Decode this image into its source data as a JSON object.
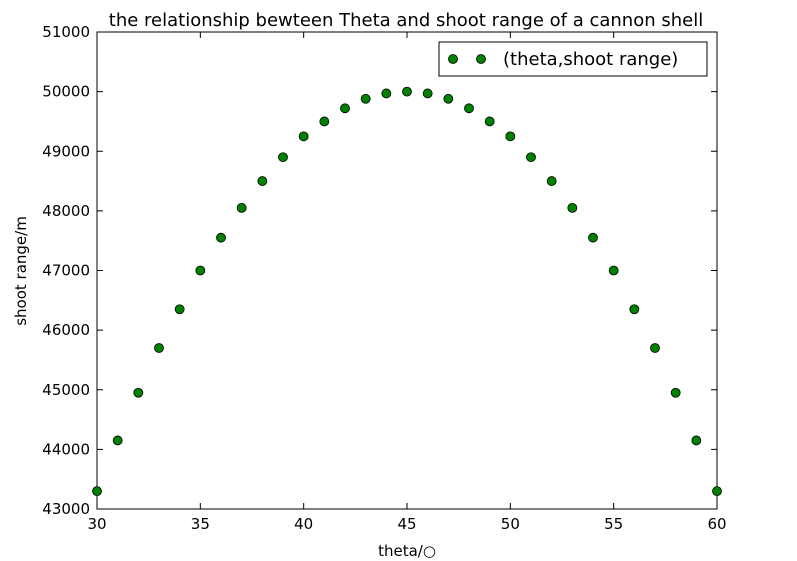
{
  "chart_data": {
    "type": "scatter",
    "title": "the relationship bewteen Theta and shoot range of a cannon shell",
    "xlabel": "theta/○",
    "ylabel": "shoot range/m",
    "xlim": [
      30,
      60
    ],
    "ylim": [
      43000,
      51000
    ],
    "xticks": [
      30,
      35,
      40,
      45,
      50,
      55,
      60
    ],
    "yticks": [
      43000,
      44000,
      45000,
      46000,
      47000,
      48000,
      49000,
      50000,
      51000
    ],
    "grid": false,
    "legend_position": "top-right",
    "series": [
      {
        "name": "(theta,shoot range)",
        "color": "#008000",
        "marker": "circle",
        "x": [
          30,
          31,
          32,
          33,
          34,
          35,
          36,
          37,
          38,
          39,
          40,
          41,
          42,
          43,
          44,
          45,
          46,
          47,
          48,
          49,
          50,
          51,
          52,
          53,
          54,
          55,
          56,
          57,
          58,
          59,
          60
        ],
        "y": [
          43300,
          44150,
          44950,
          45700,
          46350,
          47000,
          47550,
          48050,
          48500,
          48900,
          49250,
          49500,
          49720,
          49880,
          49970,
          50000,
          49970,
          49880,
          49720,
          49500,
          49250,
          48900,
          48500,
          48050,
          47550,
          47000,
          46350,
          45700,
          44950,
          44150,
          43300
        ]
      }
    ]
  }
}
